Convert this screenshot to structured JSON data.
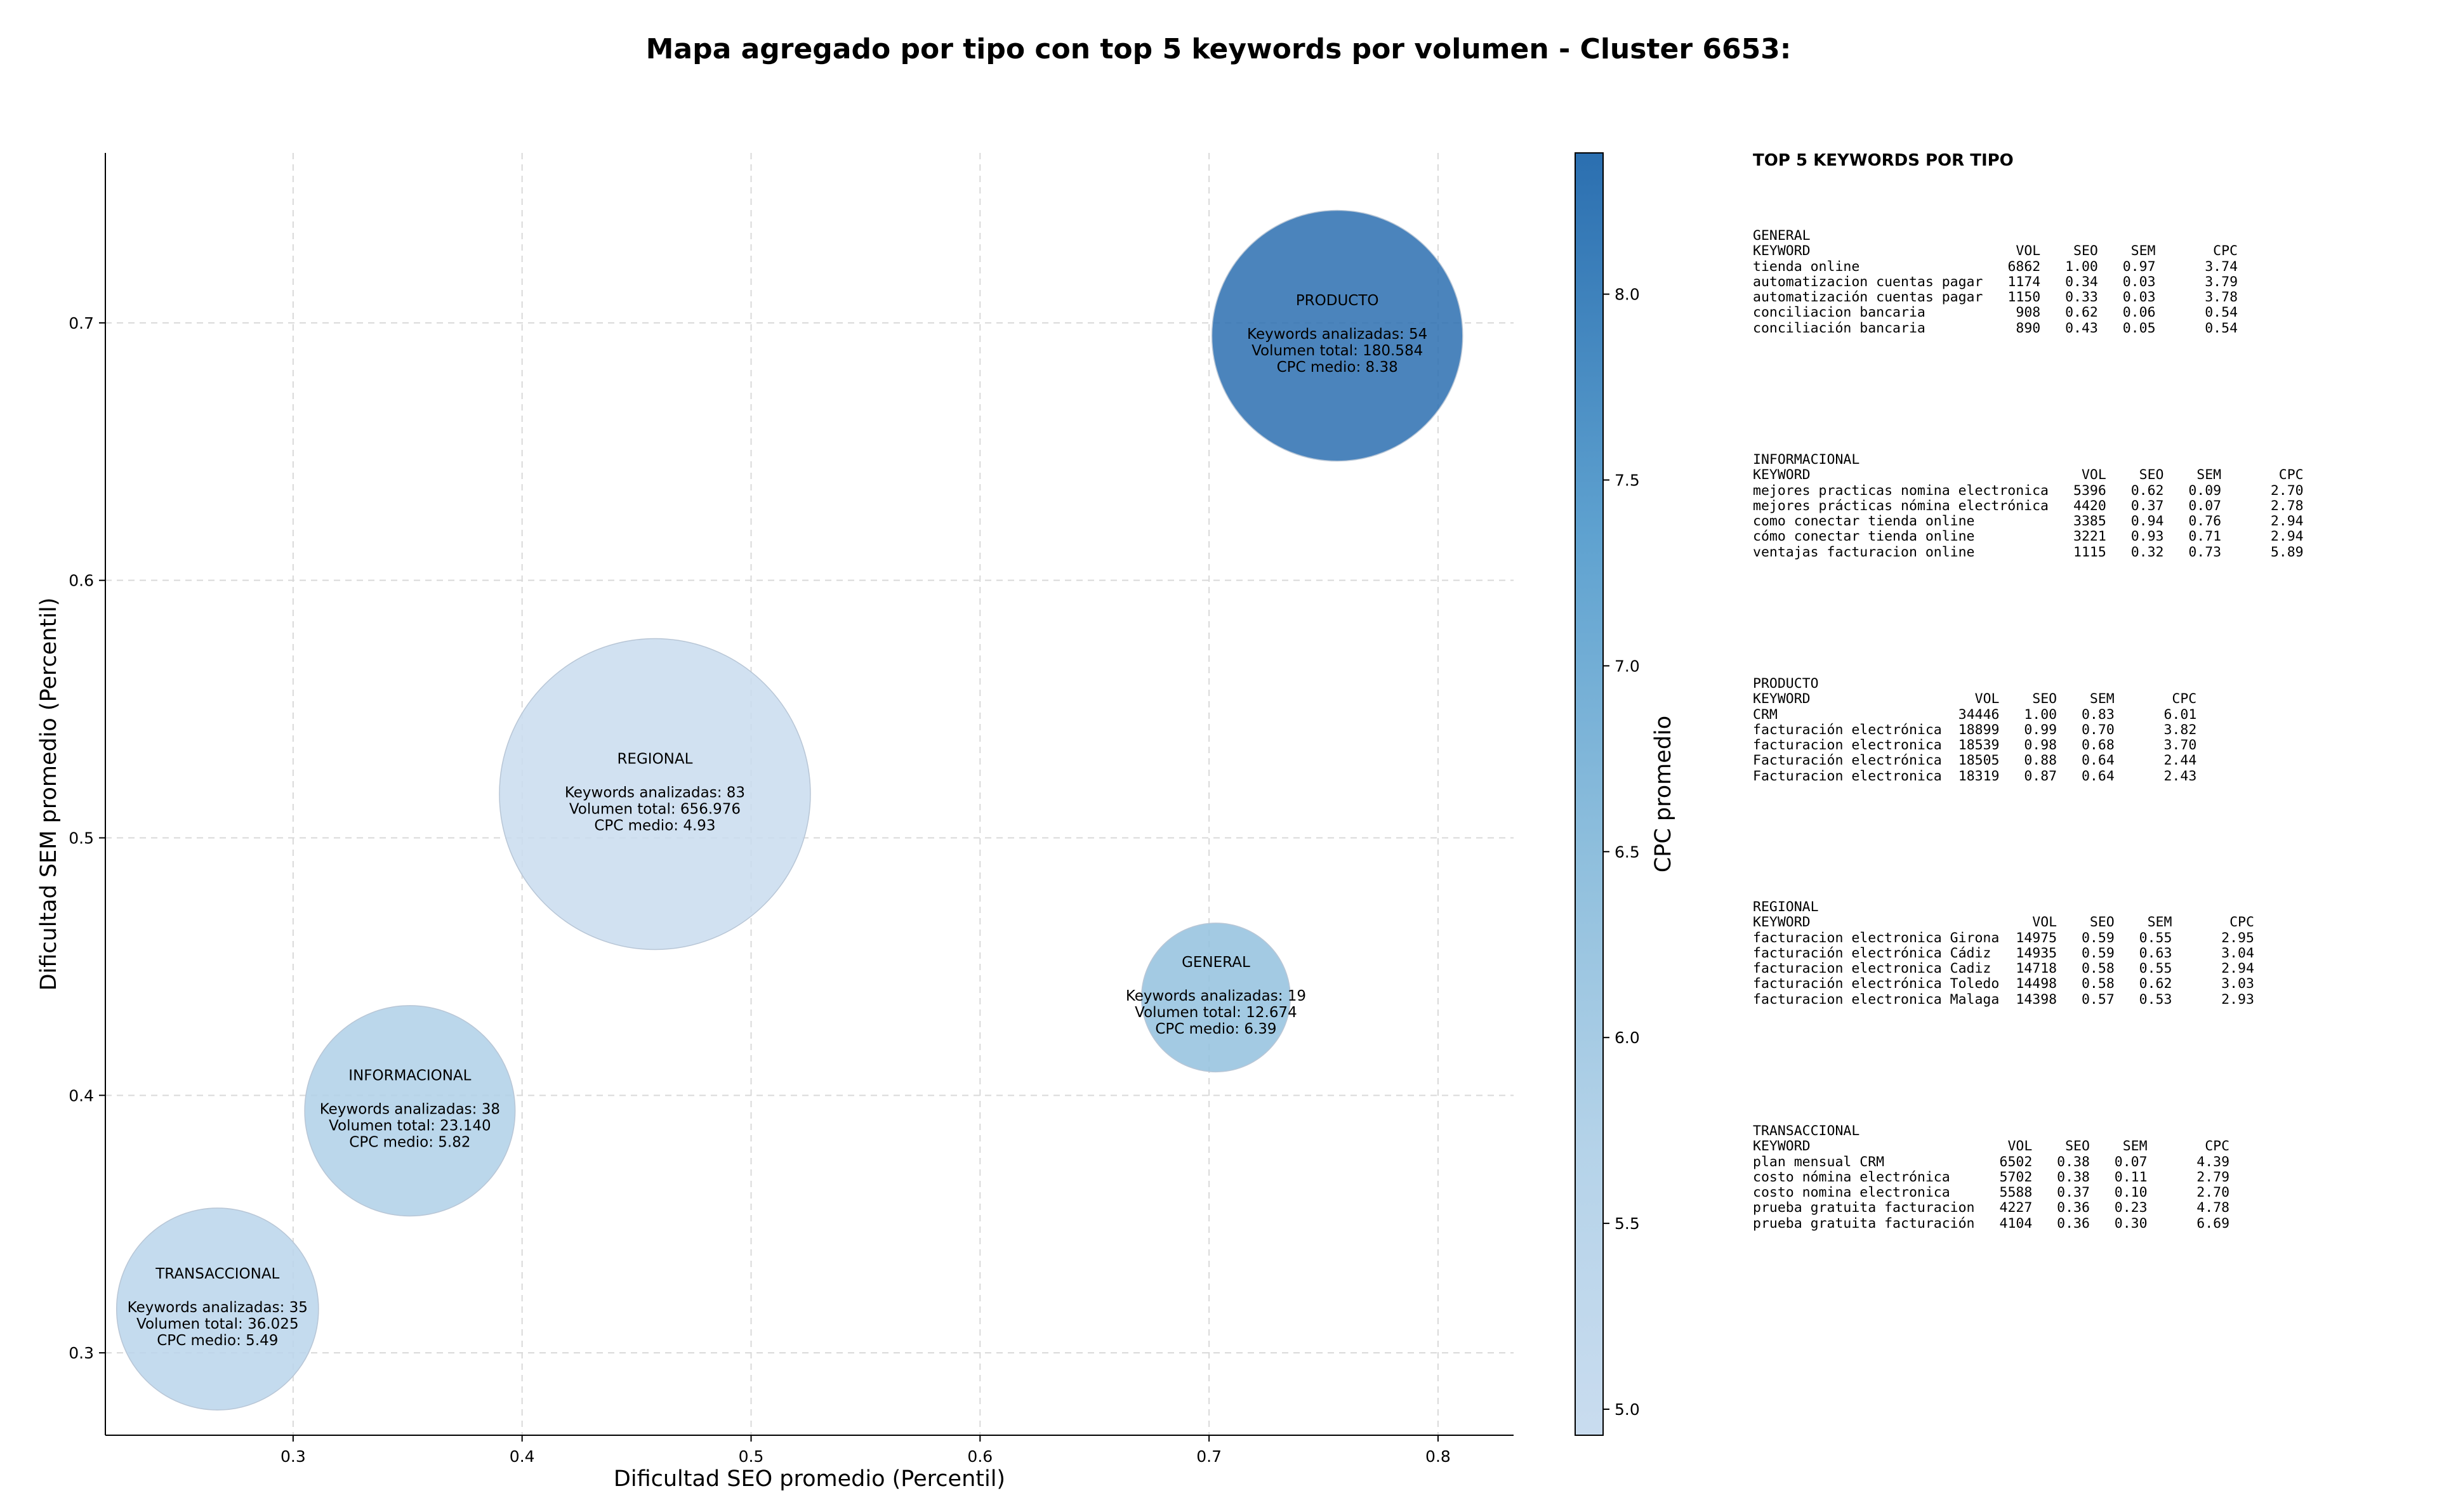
{
  "title": "Mapa agregado por tipo con top 5 keywords por volumen - Cluster 6653:",
  "chart_data": {
    "type": "scatter",
    "subtype": "bubble",
    "xlabel": "Dificultad SEO promedio (Percentil)",
    "ylabel": "Dificultad SEM promedio (Percentil)",
    "xlim": [
      0.218,
      0.833
    ],
    "ylim": [
      0.268,
      0.766
    ],
    "xticks": [
      0.3,
      0.4,
      0.5,
      0.6,
      0.7,
      0.8
    ],
    "yticks": [
      0.3,
      0.4,
      0.5,
      0.6,
      0.7
    ],
    "grid": true,
    "colorbar": {
      "label": "CPC promedio",
      "min": 4.93,
      "max": 8.38,
      "ticks": [
        5.0,
        5.5,
        6.0,
        6.5,
        7.0,
        7.5,
        8.0
      ],
      "colormap": "Blues"
    },
    "points": [
      {
        "label": "PRODUCTO",
        "x": 0.756,
        "y": 0.695,
        "keywords": 54,
        "volume": 180584,
        "cpc": 8.38,
        "lines": [
          "Keywords analizadas: 54",
          "Volumen total: 180.584",
          "CPC medio: 8.38"
        ]
      },
      {
        "label": "REGIONAL",
        "x": 0.458,
        "y": 0.517,
        "keywords": 83,
        "volume": 656976,
        "cpc": 4.93,
        "lines": [
          "Keywords analizadas: 83",
          "Volumen total: 656.976",
          "CPC medio: 4.93"
        ]
      },
      {
        "label": "GENERAL",
        "x": 0.703,
        "y": 0.438,
        "keywords": 19,
        "volume": 12674,
        "cpc": 6.39,
        "lines": [
          "Keywords analizadas: 19",
          "Volumen total: 12.674",
          "CPC medio: 6.39"
        ]
      },
      {
        "label": "INFORMACIONAL",
        "x": 0.351,
        "y": 0.394,
        "keywords": 38,
        "volume": 23140,
        "cpc": 5.82,
        "lines": [
          "Keywords analizadas: 38",
          "Volumen total: 23.140",
          "CPC medio: 5.82"
        ]
      },
      {
        "label": "TRANSACCIONAL",
        "x": 0.267,
        "y": 0.317,
        "keywords": 35,
        "volume": 36025,
        "cpc": 5.49,
        "lines": [
          "Keywords analizadas: 35",
          "Volumen total: 36.025",
          "CPC medio: 5.49"
        ]
      }
    ]
  },
  "top_keywords": {
    "title": "TOP 5 KEYWORDS POR TIPO",
    "headers": [
      "KEYWORD",
      "VOL",
      "SEO",
      "SEM",
      "CPC"
    ],
    "groups": [
      {
        "name": "GENERAL",
        "rows": [
          [
            "tienda online",
            "6862",
            "1.00",
            "0.97",
            "3.74"
          ],
          [
            "automatizacion cuentas pagar",
            "1174",
            "0.34",
            "0.03",
            "3.79"
          ],
          [
            "automatización cuentas pagar",
            "1150",
            "0.33",
            "0.03",
            "3.78"
          ],
          [
            "conciliacion bancaria",
            "908",
            "0.62",
            "0.06",
            "0.54"
          ],
          [
            "conciliación bancaria",
            "890",
            "0.43",
            "0.05",
            "0.54"
          ]
        ]
      },
      {
        "name": "INFORMACIONAL",
        "rows": [
          [
            "mejores practicas nomina electronica",
            "5396",
            "0.62",
            "0.09",
            "2.70"
          ],
          [
            "mejores prácticas nómina electrónica",
            "4420",
            "0.37",
            "0.07",
            "2.78"
          ],
          [
            "como conectar tienda online",
            "3385",
            "0.94",
            "0.76",
            "2.94"
          ],
          [
            "cómo conectar tienda online",
            "3221",
            "0.93",
            "0.71",
            "2.94"
          ],
          [
            "ventajas facturacion online",
            "1115",
            "0.32",
            "0.73",
            "5.89"
          ]
        ]
      },
      {
        "name": "PRODUCTO",
        "rows": [
          [
            "CRM",
            "34446",
            "1.00",
            "0.83",
            "6.01"
          ],
          [
            "facturación electrónica",
            "18899",
            "0.99",
            "0.70",
            "3.82"
          ],
          [
            "facturacion electronica",
            "18539",
            "0.98",
            "0.68",
            "3.70"
          ],
          [
            "Facturación electrónica",
            "18505",
            "0.88",
            "0.64",
            "2.44"
          ],
          [
            "Facturacion electronica",
            "18319",
            "0.87",
            "0.64",
            "2.43"
          ]
        ]
      },
      {
        "name": "REGIONAL",
        "rows": [
          [
            "facturacion electronica Girona",
            "14975",
            "0.59",
            "0.55",
            "2.95"
          ],
          [
            "facturación electrónica Cádiz",
            "14935",
            "0.59",
            "0.63",
            "3.04"
          ],
          [
            "facturacion electronica Cadiz",
            "14718",
            "0.58",
            "0.55",
            "2.94"
          ],
          [
            "facturación electrónica Toledo",
            "14498",
            "0.58",
            "0.62",
            "3.03"
          ],
          [
            "facturacion electronica Malaga",
            "14398",
            "0.57",
            "0.53",
            "2.93"
          ]
        ]
      },
      {
        "name": "TRANSACCIONAL",
        "rows": [
          [
            "plan mensual CRM",
            "6502",
            "0.38",
            "0.07",
            "4.39"
          ],
          [
            "costo nómina electrónica",
            "5702",
            "0.38",
            "0.11",
            "2.79"
          ],
          [
            "costo nomina electronica",
            "5588",
            "0.37",
            "0.10",
            "2.70"
          ],
          [
            "prueba gratuita facturacion",
            "4227",
            "0.36",
            "0.23",
            "4.78"
          ],
          [
            "prueba gratuita facturación",
            "4104",
            "0.36",
            "0.30",
            "6.69"
          ]
        ]
      }
    ]
  }
}
